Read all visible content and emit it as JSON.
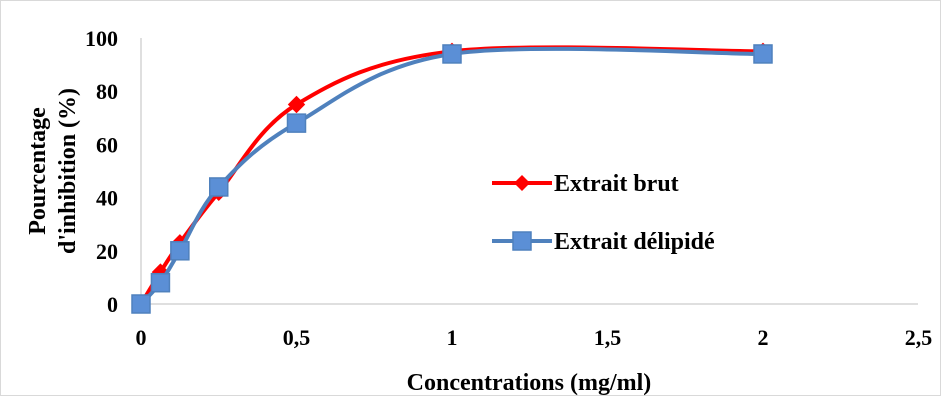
{
  "chart_data": {
    "type": "line",
    "title": "",
    "xlabel": "Concentrations (mg/ml)",
    "ylabel_lines": [
      "Pourcentage",
      "d'inhibition (%)"
    ],
    "xlim": [
      0,
      2.5
    ],
    "ylim": [
      0,
      100
    ],
    "x_ticks": [
      {
        "value": 0,
        "label": "0"
      },
      {
        "value": 0.5,
        "label": "0,5"
      },
      {
        "value": 1,
        "label": "1"
      },
      {
        "value": 1.5,
        "label": "1,5"
      },
      {
        "value": 2,
        "label": "2"
      },
      {
        "value": 2.5,
        "label": "2,5"
      }
    ],
    "y_ticks": [
      {
        "value": 0,
        "label": "0"
      },
      {
        "value": 20,
        "label": "20"
      },
      {
        "value": 40,
        "label": "40"
      },
      {
        "value": 60,
        "label": "60"
      },
      {
        "value": 80,
        "label": "80"
      },
      {
        "value": 100,
        "label": "100"
      }
    ],
    "grid": false,
    "smooth": true,
    "legend_position": "right",
    "series": [
      {
        "name": "Extrait brut",
        "color": "#ff0000",
        "marker": "diamond",
        "x": [
          0,
          0.0625,
          0.125,
          0.25,
          0.5,
          1,
          2
        ],
        "y": [
          0,
          12,
          23,
          42,
          75,
          95,
          95
        ]
      },
      {
        "name": "Extrait délipidé",
        "color": "#4f81bd",
        "marker_fill": "#5b8fd6",
        "marker": "square",
        "x": [
          0,
          0.0625,
          0.125,
          0.25,
          0.5,
          1,
          2
        ],
        "y": [
          0,
          8,
          20,
          44,
          68,
          94,
          94
        ]
      }
    ]
  }
}
